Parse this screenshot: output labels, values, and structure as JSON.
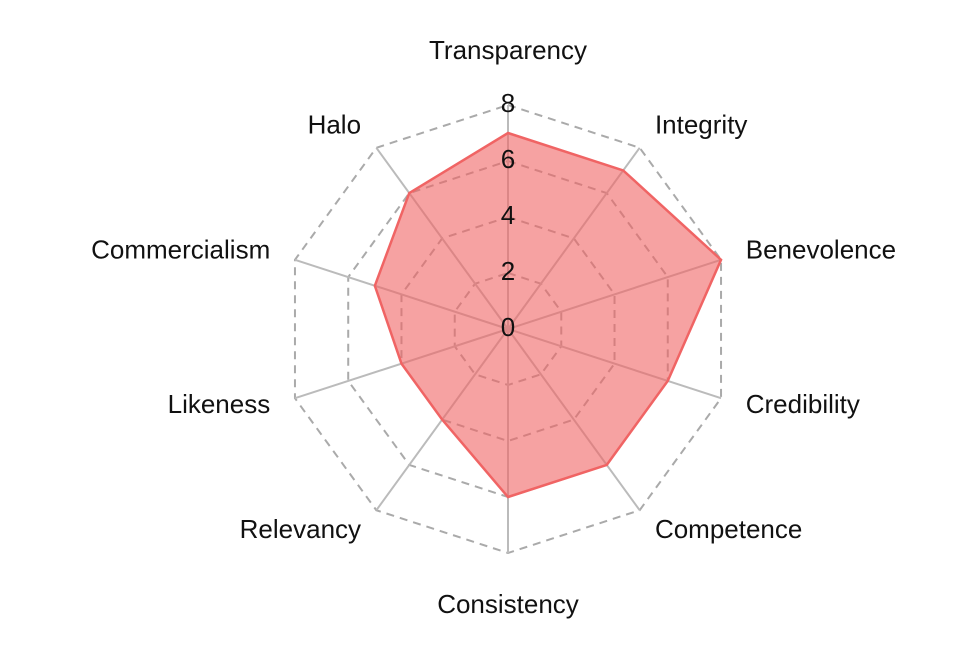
{
  "chart_data": {
    "type": "radar",
    "categories": [
      "Transparency",
      "Integrity",
      "Benevolence",
      "Credibility",
      "Competence",
      "Consistency",
      "Relevancy",
      "Likeness",
      "Commercialism",
      "Halo"
    ],
    "values": [
      7,
      7,
      8,
      6,
      6,
      6,
      4,
      4,
      5,
      6
    ],
    "color": "#f06464",
    "ylim": [
      0,
      8
    ],
    "yticks": [
      0,
      2,
      4,
      6,
      8
    ],
    "grid": true
  }
}
